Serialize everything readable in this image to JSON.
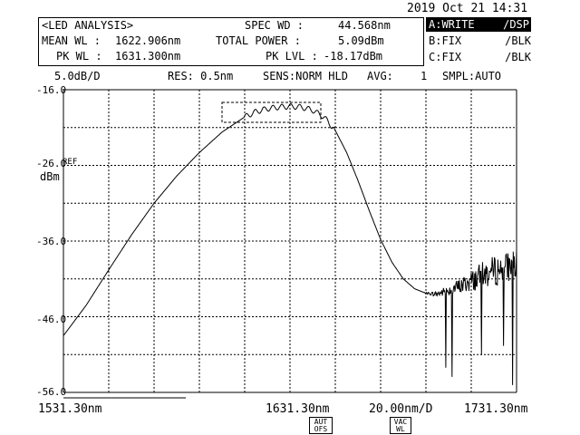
{
  "datetime": "2019 Oct 21 14:31",
  "analysis": {
    "title": "<LED ANALYSIS>",
    "mean_wl_label": "MEAN WL :",
    "mean_wl_value": "1622.906nm",
    "pk_wl_label": "PK WL :",
    "pk_wl_value": "1631.300nm",
    "spec_wd_label": "SPEC WD :",
    "spec_wd_value": "44.568nm",
    "total_power_label": "TOTAL POWER :",
    "total_power_value": "5.09dBm",
    "pk_lvl_label": "PK LVL :",
    "pk_lvl_value": "-18.17dBm"
  },
  "traces": [
    {
      "name": "A:WRITE",
      "mode": "/DSP",
      "active": true
    },
    {
      "name": "B:FIX",
      "mode": "/BLK",
      "active": false
    },
    {
      "name": "C:FIX",
      "mode": "/BLK",
      "active": false
    }
  ],
  "settings": {
    "scale": "5.0dB/D",
    "res": "RES: 0.5nm",
    "sens": "SENS:NORM HLD",
    "avg_label": "AVG:",
    "avg_value": "1",
    "smpl": "SMPL:AUTO"
  },
  "yaxis": {
    "ticks": [
      "-16.0",
      "-26.0",
      "-36.0",
      "-46.0",
      "-56.0"
    ],
    "ref_label": "REF",
    "unit": "dBm"
  },
  "xaxis": {
    "start": "1531.30nm",
    "center": "1631.30nm",
    "span_div": "20.00nm/D",
    "stop": "1731.30nm"
  },
  "keys": {
    "aut_ofs_line1": "AUT",
    "aut_ofs_line2": "OFS",
    "vac_wl_line1": "VAC",
    "vac_wl_line2": "WL"
  },
  "colors": {
    "trace": "#000000",
    "grid": "#000000",
    "background": "#ffffff"
  },
  "chart_data": {
    "type": "line",
    "x_unit": "nm",
    "y_unit": "dBm",
    "xlim": [
      1531.3,
      1731.3
    ],
    "ylim": [
      -56.0,
      -16.0
    ],
    "grid": true,
    "series": [
      {
        "x": [
          1531.3,
          1541.3,
          1551.3,
          1561.3,
          1571.3,
          1581.3,
          1591.3,
          1601.3,
          1606.3,
          1611.3,
          1616.3,
          1621.3,
          1626.3,
          1631.3,
          1636.3,
          1641.3,
          1646.3,
          1651.3,
          1656.3,
          1661.3,
          1666.3,
          1671.3,
          1676.3,
          1681.3,
          1686.3,
          1691.3,
          1696.3,
          1701.3,
          1706.3,
          1711.3,
          1716.3,
          1721.3,
          1726.3,
          1731.3
        ],
        "y": [
          -48.5,
          -44.5,
          -39.8,
          -35.2,
          -31.0,
          -27.4,
          -24.3,
          -21.6,
          -20.6,
          -19.6,
          -18.9,
          -18.5,
          -18.3,
          -18.2,
          -18.3,
          -18.7,
          -19.6,
          -21.4,
          -24.3,
          -28.0,
          -32.0,
          -35.8,
          -38.8,
          -41.0,
          -42.3,
          -42.9,
          -43.0,
          -42.5,
          -42.0,
          -41.3,
          -40.5,
          -40.0,
          -39.5,
          -39.0
        ]
      }
    ]
  }
}
